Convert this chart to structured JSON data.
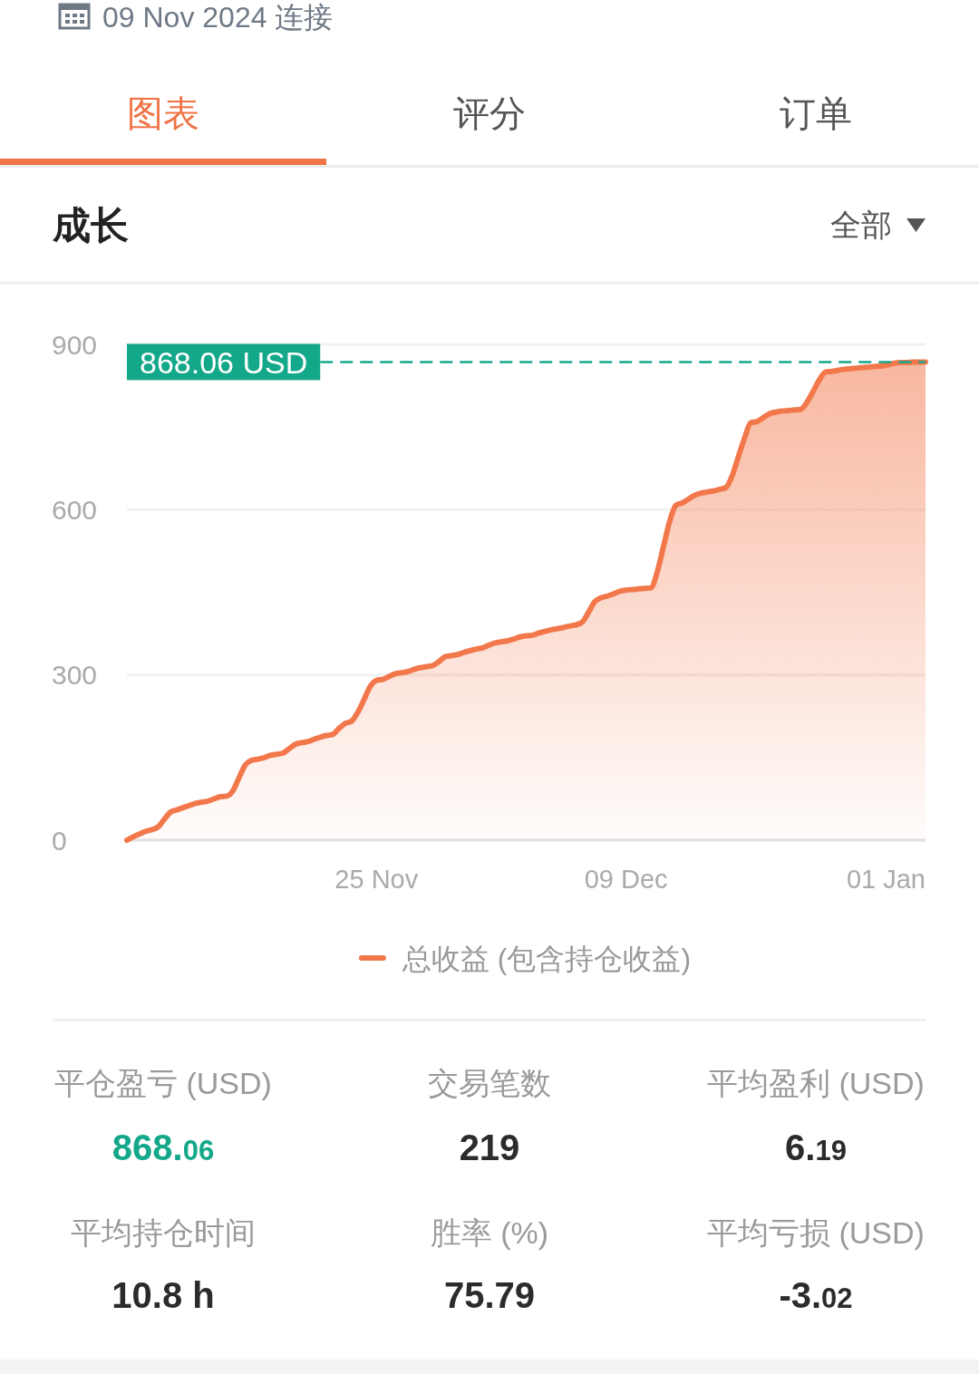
{
  "chart_data": [
    {
      "type": "area",
      "title": "成长",
      "annotations": [
        "09 Nov 2024 连接",
        "图表",
        "评分",
        "订单",
        "全部"
      ],
      "categories": [
        null,
        null,
        null,
        null,
        null,
        null,
        null,
        null,
        null,
        null,
        null,
        null,
        null,
        null,
        null,
        null,
        null,
        null,
        null,
        null,
        null,
        null,
        null,
        null,
        null,
        null,
        null,
        null,
        null,
        null,
        null,
        null,
        null,
        null,
        null,
        null,
        null,
        null,
        null,
        null,
        "25 Nov",
        null,
        null,
        null,
        null,
        null,
        null,
        null,
        null,
        null,
        null,
        null,
        null,
        null,
        null,
        null,
        null,
        null,
        null,
        null,
        null,
        null,
        null,
        null,
        null,
        null,
        null,
        null,
        null,
        null,
        null,
        null,
        null,
        null,
        null,
        null,
        null,
        null,
        null,
        null,
        "09 Dec",
        null,
        null,
        null,
        null,
        null,
        null,
        null,
        null,
        null,
        null,
        null,
        null,
        null,
        null,
        null,
        null,
        null,
        null,
        null,
        null,
        null,
        null,
        null,
        null,
        null,
        null,
        null,
        null,
        null,
        null,
        null,
        null,
        null,
        null,
        null,
        null,
        null,
        null,
        null,
        null,
        null,
        "01 Jan",
        null,
        null,
        null,
        null,
        null,
        null
      ],
      "series": [
        {
          "name": "总收益 (包含持仓收益)",
          "color": "#f2784b",
          "values": [
            0,
            6,
            11,
            16,
            19,
            24,
            38,
            51,
            55,
            59,
            63,
            67,
            69,
            71,
            75,
            79,
            80,
            90,
            114,
            137,
            145,
            147,
            150,
            154,
            156,
            158,
            166,
            174,
            177,
            179,
            183,
            187,
            190,
            192,
            203,
            212,
            216,
            232,
            255,
            279,
            290,
            292,
            297,
            302,
            304,
            306,
            310,
            313,
            315,
            317,
            324,
            333,
            335,
            337,
            341,
            344,
            347,
            349,
            354,
            358,
            360,
            362,
            365,
            369,
            371,
            372,
            376,
            379,
            382,
            384,
            386,
            389,
            391,
            396,
            414,
            433,
            440,
            443,
            447,
            452,
            454,
            455,
            456,
            457,
            458,
            487,
            533,
            579,
            608,
            612,
            619,
            626,
            630,
            632,
            634,
            637,
            640,
            661,
            696,
            730,
            758,
            760,
            767,
            774,
            777,
            779,
            780,
            781,
            782,
            795,
            815,
            836,
            850,
            851,
            853,
            855,
            856,
            857,
            858,
            859,
            860,
            861,
            863,
            866,
            867,
            867,
            868,
            868,
            868
          ]
        }
      ],
      "ylim": [
        0,
        900
      ],
      "yticks": [
        0,
        300,
        600,
        900
      ],
      "grid": "y",
      "legend": "bottom",
      "ref_lines": [
        {
          "axis": "y",
          "value": 868.06,
          "label": "868.06 USD",
          "color": "#14a88a",
          "line_style": "dashed"
        }
      ]
    },
    {
      "type": "other",
      "annotations": [
        "平仓盈亏 (USD)",
        "868.06",
        "交易笔数",
        "219",
        "平均盈利 (USD)",
        "6.19",
        "平均持仓时间",
        "10.8 h",
        "胜率 (%)",
        "75.79",
        "平均亏损 (USD)",
        "-3.02"
      ]
    }
  ]
}
